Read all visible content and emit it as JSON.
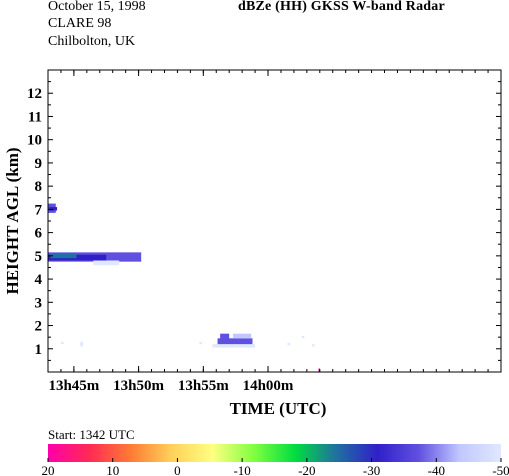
{
  "header": {
    "date": "October 15, 1998",
    "campaign": "CLARE 98",
    "location": "Chilbolton, UK",
    "title": "dBZe (HH)  GKSS  W-band Radar"
  },
  "colorbar": {
    "start_label": "Start: 1342 UTC",
    "ticks": [
      {
        "value": 20,
        "label": "20"
      },
      {
        "value": 10,
        "label": "10"
      },
      {
        "value": 0,
        "label": "0"
      },
      {
        "value": -10,
        "label": "-10"
      },
      {
        "value": -20,
        "label": "-20"
      },
      {
        "value": -30,
        "label": "-30"
      },
      {
        "value": -40,
        "label": "-40"
      },
      {
        "value": -50,
        "label": "-50"
      }
    ],
    "range": [
      20,
      -50
    ],
    "colors": [
      "#ff00aa",
      "#ff2a55",
      "#ff7a35",
      "#ffd05a",
      "#ffff80",
      "#80ff40",
      "#00dd40",
      "#2070a0",
      "#3020c8",
      "#6050e0",
      "#c0c8ff",
      "#e0e8ff"
    ]
  },
  "chart_data": {
    "type": "heatmap",
    "title": "dBZe (HH)  GKSS  W-band Radar",
    "xlabel": "TIME (UTC)",
    "ylabel": "HEIGHT AGL (km)",
    "xlim_minutes_utc": [
      823,
      858
    ],
    "ylim_km": [
      0,
      13
    ],
    "x_ticks": [
      {
        "value": 825,
        "label": "13h45m"
      },
      {
        "value": 830,
        "label": "13h50m"
      },
      {
        "value": 835,
        "label": "13h55m"
      },
      {
        "value": 840,
        "label": "14h00m"
      }
    ],
    "y_ticks": [
      1,
      2,
      3,
      4,
      5,
      6,
      7,
      8,
      9,
      10,
      11,
      12
    ],
    "echo_regions": [
      {
        "t0": 823.0,
        "t1": 830.2,
        "h0": 4.75,
        "h1": 5.15,
        "dbz": -38
      },
      {
        "t0": 823.0,
        "t1": 827.5,
        "h0": 4.8,
        "h1": 5.05,
        "dbz": -30
      },
      {
        "t0": 823.2,
        "t1": 825.2,
        "h0": 4.9,
        "h1": 5.1,
        "dbz": -22
      },
      {
        "t0": 826.5,
        "t1": 828.5,
        "h0": 4.6,
        "h1": 4.8,
        "dbz": -45
      },
      {
        "t0": 823.0,
        "t1": 823.6,
        "h0": 6.85,
        "h1": 7.25,
        "dbz": -35
      },
      {
        "t0": 823.1,
        "t1": 823.7,
        "h0": 6.95,
        "h1": 7.1,
        "dbz": -28
      },
      {
        "t0": 836.1,
        "t1": 838.8,
        "h0": 1.15,
        "h1": 1.45,
        "dbz": -38
      },
      {
        "t0": 836.3,
        "t1": 837.0,
        "h0": 1.4,
        "h1": 1.65,
        "dbz": -38
      },
      {
        "t0": 837.3,
        "t1": 838.7,
        "h0": 1.45,
        "h1": 1.65,
        "dbz": -42
      },
      {
        "t0": 835.7,
        "t1": 839.0,
        "h0": 1.05,
        "h1": 1.2,
        "dbz": -46
      },
      {
        "t0": 824.0,
        "t1": 824.2,
        "h0": 1.2,
        "h1": 1.3,
        "dbz": -46
      },
      {
        "t0": 825.5,
        "t1": 825.7,
        "h0": 1.1,
        "h1": 1.3,
        "dbz": -46
      },
      {
        "t0": 834.7,
        "t1": 834.9,
        "h0": 1.2,
        "h1": 1.3,
        "dbz": -46
      },
      {
        "t0": 841.5,
        "t1": 841.7,
        "h0": 1.15,
        "h1": 1.25,
        "dbz": -46
      },
      {
        "t0": 842.6,
        "t1": 842.8,
        "h0": 1.45,
        "h1": 1.55,
        "dbz": -46
      },
      {
        "t0": 843.4,
        "t1": 843.6,
        "h0": 1.1,
        "h1": 1.2,
        "dbz": -46
      },
      {
        "t0": 843.9,
        "t1": 844.0,
        "h0": 0.0,
        "h1": 0.15,
        "dbz": 18
      }
    ]
  }
}
